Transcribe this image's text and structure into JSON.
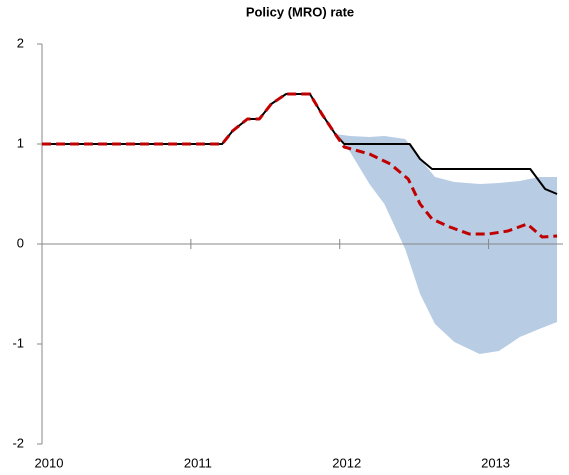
{
  "chart_data": {
    "type": "line",
    "title": "Policy (MRO) rate",
    "xlim": [
      2010,
      2013.5
    ],
    "xticks": [
      2010,
      2011,
      2012,
      2013
    ],
    "ylim": [
      -2,
      2
    ],
    "yticks": [
      -2,
      -1,
      0,
      1,
      2
    ],
    "band": {
      "color": "#b8cce4",
      "x": [
        2011.97,
        2012.07,
        2012.2,
        2012.3,
        2012.44,
        2012.54,
        2012.64,
        2012.77,
        2012.94,
        2013.07,
        2013.21,
        2013.34,
        2013.46
      ],
      "upper": [
        1.1,
        1.08,
        1.07,
        1.08,
        1.05,
        0.85,
        0.67,
        0.62,
        0.6,
        0.61,
        0.63,
        0.67,
        0.67
      ],
      "lower": [
        1.1,
        0.92,
        0.6,
        0.4,
        -0.05,
        -0.5,
        -0.8,
        -0.98,
        -1.1,
        -1.07,
        -0.93,
        -0.85,
        -0.78
      ]
    },
    "series": [
      {
        "color": "#000000",
        "dashed": false,
        "x": [
          2010.0,
          2011.21,
          2011.28,
          2011.38,
          2011.46,
          2011.54,
          2011.64,
          2011.8,
          2011.88,
          2011.97,
          2012.03,
          2012.47,
          2012.54,
          2012.62,
          2013.28,
          2013.38,
          2013.46
        ],
        "values": [
          1,
          1,
          1.13,
          1.25,
          1.25,
          1.4,
          1.5,
          1.5,
          1.3,
          1.1,
          1.0,
          1.0,
          0.85,
          0.75,
          0.75,
          0.55,
          0.5
        ]
      },
      {
        "color": "#c00000",
        "dashed": true,
        "x": [
          2010.0,
          2011.21,
          2011.28,
          2011.38,
          2011.46,
          2011.54,
          2011.64,
          2011.8,
          2011.88,
          2011.97,
          2012.03,
          2012.2,
          2012.34,
          2012.46,
          2012.54,
          2012.62,
          2012.74,
          2012.87,
          2013.0,
          2013.13,
          2013.26,
          2013.36,
          2013.46
        ],
        "values": [
          1,
          1,
          1.13,
          1.25,
          1.25,
          1.4,
          1.5,
          1.5,
          1.3,
          1.1,
          0.97,
          0.9,
          0.8,
          0.65,
          0.4,
          0.25,
          0.17,
          0.1,
          0.1,
          0.13,
          0.2,
          0.07,
          0.08
        ]
      }
    ]
  }
}
